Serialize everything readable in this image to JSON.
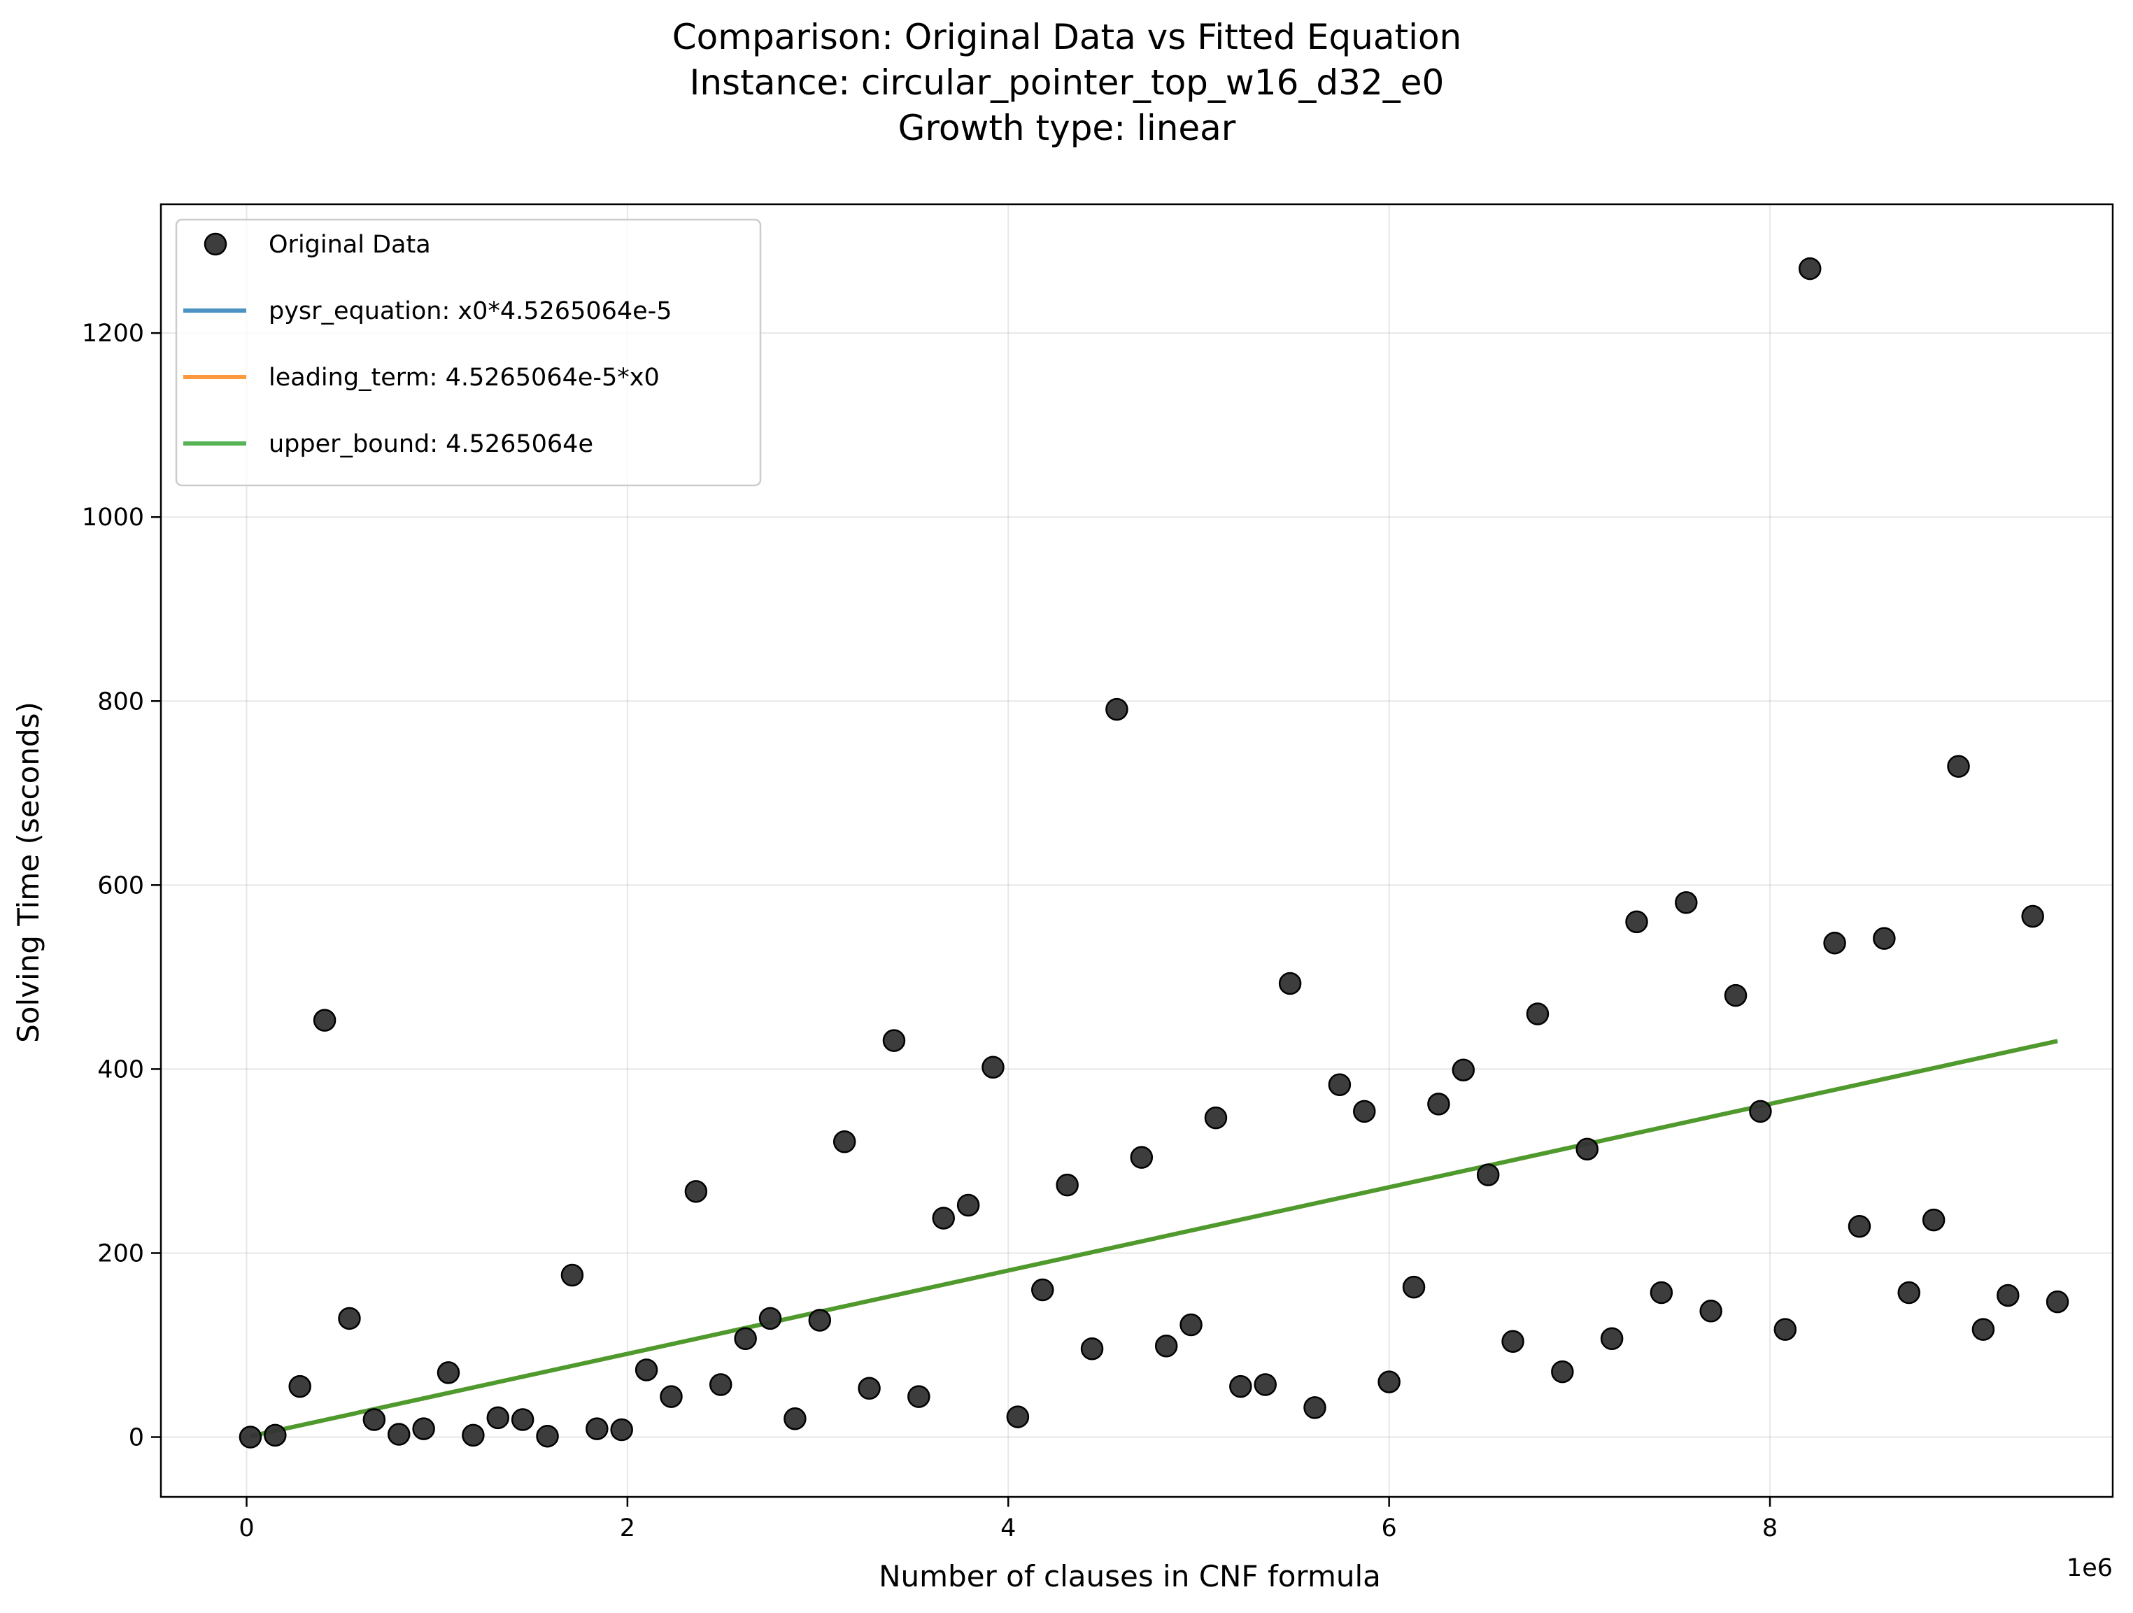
{
  "chart_data": {
    "type": "scatter",
    "title_lines": [
      "Comparison: Original Data vs Fitted Equation",
      "Instance: circular_pointer_top_w16_d32_e0",
      "Growth type: linear"
    ],
    "xlabel": "Number of clauses in CNF formula",
    "ylabel": "Solving Time (seconds)",
    "x_offset_label": "1e6",
    "xlim": [
      -450000,
      9800000
    ],
    "ylim": [
      -65,
      1340
    ],
    "x_ticks": [
      0,
      2000000,
      4000000,
      6000000,
      8000000
    ],
    "x_tick_labels": [
      "0",
      "2",
      "4",
      "6",
      "8"
    ],
    "y_ticks": [
      0,
      200,
      400,
      600,
      800,
      1000,
      1200
    ],
    "y_tick_labels": [
      "0",
      "200",
      "400",
      "600",
      "800",
      "1000",
      "1200"
    ],
    "grid": true,
    "legend_position": "upper-left",
    "series": [
      {
        "name": "Original Data",
        "kind": "scatter",
        "color": "#333333",
        "points": [
          [
            20000,
            0
          ],
          [
            150000,
            2
          ],
          [
            280000,
            55
          ],
          [
            410000,
            453
          ],
          [
            540000,
            129
          ],
          [
            670000,
            19
          ],
          [
            800000,
            3
          ],
          [
            930000,
            9
          ],
          [
            1060000,
            70
          ],
          [
            1190000,
            2
          ],
          [
            1320000,
            21
          ],
          [
            1450000,
            19
          ],
          [
            1580000,
            1
          ],
          [
            1710000,
            176
          ],
          [
            1840000,
            9
          ],
          [
            1970000,
            8
          ],
          [
            2100000,
            73
          ],
          [
            2230000,
            44
          ],
          [
            2360000,
            267
          ],
          [
            2490000,
            57
          ],
          [
            2620000,
            107
          ],
          [
            2750000,
            129
          ],
          [
            2880000,
            20
          ],
          [
            3010000,
            127
          ],
          [
            3140000,
            321
          ],
          [
            3270000,
            53
          ],
          [
            3400000,
            431
          ],
          [
            3530000,
            44
          ],
          [
            3660000,
            238
          ],
          [
            3790000,
            252
          ],
          [
            3920000,
            402
          ],
          [
            4050000,
            22
          ],
          [
            4180000,
            160
          ],
          [
            4310000,
            274
          ],
          [
            4440000,
            96
          ],
          [
            4570000,
            791
          ],
          [
            4700000,
            304
          ],
          [
            4830000,
            99
          ],
          [
            4960000,
            122
          ],
          [
            5090000,
            347
          ],
          [
            5220000,
            55
          ],
          [
            5350000,
            57
          ],
          [
            5480000,
            493
          ],
          [
            5610000,
            32
          ],
          [
            5740000,
            383
          ],
          [
            5870000,
            354
          ],
          [
            6000000,
            60
          ],
          [
            6130000,
            163
          ],
          [
            6260000,
            362
          ],
          [
            6390000,
            399
          ],
          [
            6520000,
            285
          ],
          [
            6650000,
            104
          ],
          [
            6780000,
            460
          ],
          [
            6910000,
            71
          ],
          [
            7040000,
            313
          ],
          [
            7170000,
            107
          ],
          [
            7300000,
            560
          ],
          [
            7430000,
            157
          ],
          [
            7560000,
            581
          ],
          [
            7690000,
            137
          ],
          [
            7820000,
            480
          ],
          [
            7950000,
            354
          ],
          [
            8080000,
            117
          ],
          [
            8210000,
            1270
          ],
          [
            8340000,
            537
          ],
          [
            8470000,
            229
          ],
          [
            8600000,
            542
          ],
          [
            8730000,
            157
          ],
          [
            8860000,
            236
          ],
          [
            8990000,
            729
          ],
          [
            9120000,
            117
          ],
          [
            9250000,
            154
          ],
          [
            9380000,
            566
          ],
          [
            9510000,
            147
          ]
        ]
      },
      {
        "name": "pysr_equation: x0*4.5265064e-5",
        "kind": "line",
        "color": "#1f77b4",
        "x": [
          20000,
          9510000
        ],
        "y": [
          0.905,
          430.47
        ]
      },
      {
        "name": "leading_term: 4.5265064e-5*x0",
        "kind": "line",
        "color": "#ff7f0e",
        "x": [
          20000,
          9510000
        ],
        "y": [
          0.905,
          430.47
        ]
      },
      {
        "name": "upper_bound: 4.5265064e",
        "kind": "line",
        "color": "#2ca02c",
        "x": [
          20000,
          9510000
        ],
        "y": [
          0.905,
          430.47
        ]
      }
    ]
  }
}
